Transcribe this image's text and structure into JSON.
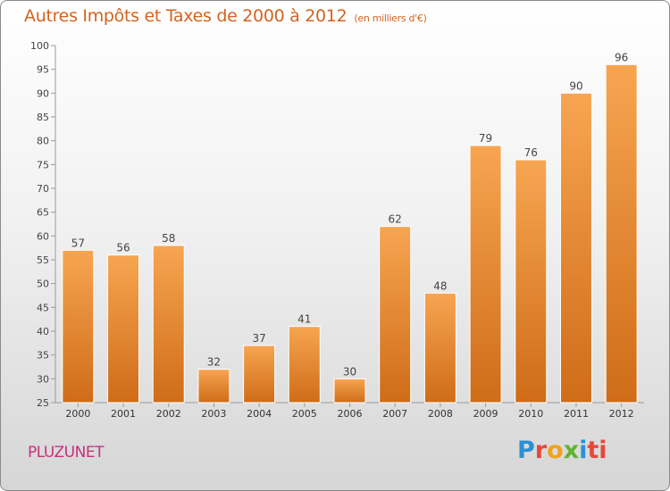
{
  "header": {
    "title": "Autres Impôts et Taxes de 2000 à 2012",
    "unit": "(en milliers d'€)"
  },
  "footer": {
    "place": "PLUZUNET",
    "logo_letters": [
      "P",
      "r",
      "o",
      "x",
      "i",
      "ti"
    ]
  },
  "colors": {
    "title": "#d4631f",
    "place": "#cc2f7d",
    "bar_top": "#f7a551",
    "bar_bottom": "#cf6c18",
    "axis": "#999999"
  },
  "chart_data": {
    "type": "bar",
    "title": "Autres Impôts et Taxes de 2000 à 2012",
    "subtitle": "(en milliers d'€)",
    "xlabel": "",
    "ylabel": "",
    "categories": [
      "2000",
      "2001",
      "2002",
      "2003",
      "2004",
      "2005",
      "2006",
      "2007",
      "2008",
      "2009",
      "2010",
      "2011",
      "2012"
    ],
    "values": [
      57,
      56,
      58,
      32,
      37,
      41,
      30,
      62,
      48,
      79,
      76,
      90,
      96
    ],
    "ylim": [
      25,
      100
    ],
    "yticks": [
      25,
      30,
      35,
      40,
      45,
      50,
      55,
      60,
      65,
      70,
      75,
      80,
      85,
      90,
      95,
      100
    ],
    "grid": false,
    "legend": "none"
  }
}
